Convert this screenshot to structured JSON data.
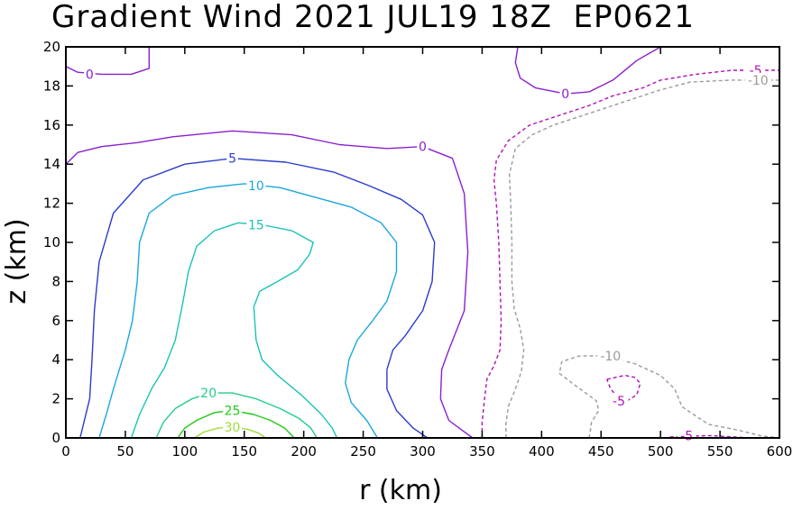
{
  "chart_data": {
    "type": "contour",
    "title": "Gradient Wind 2021 JUL19 18Z  EP0621",
    "xlabel": "r (km)",
    "ylabel": "z (km)",
    "xlim": [
      0,
      600
    ],
    "ylim": [
      0,
      20
    ],
    "xticks": [
      "0",
      "50",
      "100",
      "150",
      "200",
      "250",
      "300",
      "350",
      "400",
      "450",
      "500",
      "550",
      "600"
    ],
    "yticks": [
      "0",
      "2",
      "4",
      "6",
      "8",
      "10",
      "12",
      "14",
      "16",
      "18",
      "20"
    ],
    "grid": false,
    "negative_contours_dashed": true,
    "contours": [
      {
        "level": 0,
        "color": "#8b1fd0",
        "dashed": false,
        "points": [
          [
            0,
            14.0
          ],
          [
            10,
            14.6
          ],
          [
            30,
            14.9
          ],
          [
            60,
            15.1
          ],
          [
            90,
            15.4
          ],
          [
            140,
            15.7
          ],
          [
            190,
            15.5
          ],
          [
            230,
            15.0
          ],
          [
            270,
            14.8
          ],
          [
            300,
            14.9
          ],
          [
            325,
            14.3
          ],
          [
            335,
            12.5
          ],
          [
            338,
            9.5
          ],
          [
            335,
            6.5
          ],
          [
            322,
            4.5
          ],
          [
            316,
            3.5
          ],
          [
            315,
            2.0
          ],
          [
            322,
            0.9
          ],
          [
            333,
            0.4
          ],
          [
            342,
            0.0
          ]
        ]
      },
      {
        "level": 0,
        "color": "#8b1fd0",
        "dashed": false,
        "points": [
          [
            0,
            19.0
          ],
          [
            10,
            18.7
          ],
          [
            30,
            18.6
          ],
          [
            55,
            18.6
          ],
          [
            70,
            18.9
          ],
          [
            70,
            20.0
          ]
        ]
      },
      {
        "level": 0,
        "color": "#8b1fd0",
        "dashed": false,
        "points": [
          [
            380,
            20.0
          ],
          [
            378,
            19.2
          ],
          [
            382,
            18.4
          ],
          [
            395,
            17.9
          ],
          [
            420,
            17.6
          ],
          [
            440,
            17.7
          ],
          [
            460,
            18.3
          ],
          [
            480,
            19.3
          ],
          [
            500,
            20.0
          ]
        ]
      },
      {
        "level": 5,
        "color": "#2a3ccc",
        "dashed": false,
        "points": [
          [
            12,
            0.0
          ],
          [
            20,
            2.0
          ],
          [
            22,
            4.0
          ],
          [
            24,
            6.5
          ],
          [
            28,
            9.0
          ],
          [
            40,
            11.5
          ],
          [
            65,
            13.2
          ],
          [
            100,
            14.0
          ],
          [
            140,
            14.3
          ],
          [
            185,
            14.1
          ],
          [
            225,
            13.6
          ],
          [
            255,
            12.9
          ],
          [
            282,
            12.2
          ],
          [
            300,
            11.4
          ],
          [
            310,
            10.0
          ],
          [
            308,
            8.0
          ],
          [
            300,
            6.5
          ],
          [
            285,
            5.2
          ],
          [
            275,
            4.5
          ],
          [
            270,
            3.5
          ],
          [
            270,
            2.5
          ],
          [
            278,
            1.4
          ],
          [
            292,
            0.5
          ],
          [
            304,
            0.0
          ]
        ]
      },
      {
        "level": 10,
        "color": "#1aa7e0",
        "dashed": false,
        "points": [
          [
            28,
            0.0
          ],
          [
            34,
            1.2
          ],
          [
            40,
            2.5
          ],
          [
            50,
            4.5
          ],
          [
            56,
            6.0
          ],
          [
            60,
            8.0
          ],
          [
            62,
            10.0
          ],
          [
            70,
            11.5
          ],
          [
            90,
            12.4
          ],
          [
            120,
            12.8
          ],
          [
            150,
            13.0
          ],
          [
            180,
            12.8
          ],
          [
            210,
            12.3
          ],
          [
            240,
            11.8
          ],
          [
            265,
            11.0
          ],
          [
            278,
            10.0
          ],
          [
            278,
            8.5
          ],
          [
            270,
            7.0
          ],
          [
            258,
            6.0
          ],
          [
            245,
            5.0
          ],
          [
            238,
            4.0
          ],
          [
            235,
            2.8
          ],
          [
            240,
            1.8
          ],
          [
            253,
            0.9
          ],
          [
            262,
            0.0
          ]
        ]
      },
      {
        "level": 15,
        "color": "#1ac4b4",
        "dashed": false,
        "points": [
          [
            55,
            0.0
          ],
          [
            62,
            1.2
          ],
          [
            72,
            2.5
          ],
          [
            83,
            3.6
          ],
          [
            92,
            5.0
          ],
          [
            98,
            6.8
          ],
          [
            103,
            8.5
          ],
          [
            110,
            9.8
          ],
          [
            125,
            10.6
          ],
          [
            145,
            11.0
          ],
          [
            165,
            10.9
          ],
          [
            190,
            10.6
          ],
          [
            208,
            10.0
          ],
          [
            205,
            9.4
          ],
          [
            195,
            8.6
          ],
          [
            178,
            8.0
          ],
          [
            163,
            7.5
          ],
          [
            158,
            6.7
          ],
          [
            160,
            5.0
          ],
          [
            165,
            4.0
          ],
          [
            178,
            3.2
          ],
          [
            198,
            2.2
          ],
          [
            215,
            1.2
          ],
          [
            224,
            0.5
          ],
          [
            228,
            0.0
          ]
        ]
      },
      {
        "level": 20,
        "color": "#22cc88",
        "dashed": false,
        "points": [
          [
            76,
            0.0
          ],
          [
            82,
            0.8
          ],
          [
            92,
            1.5
          ],
          [
            106,
            2.0
          ],
          [
            122,
            2.3
          ],
          [
            140,
            2.3
          ],
          [
            160,
            2.0
          ],
          [
            180,
            1.5
          ],
          [
            196,
            1.0
          ],
          [
            206,
            0.5
          ],
          [
            211,
            0.0
          ]
        ]
      },
      {
        "level": 25,
        "color": "#22c818",
        "dashed": false,
        "points": [
          [
            94,
            0.0
          ],
          [
            100,
            0.5
          ],
          [
            110,
            0.9
          ],
          [
            125,
            1.3
          ],
          [
            140,
            1.4
          ],
          [
            158,
            1.2
          ],
          [
            172,
            0.9
          ],
          [
            184,
            0.5
          ],
          [
            192,
            0.0
          ]
        ]
      },
      {
        "level": 30,
        "color": "#a0dc3c",
        "dashed": false,
        "points": [
          [
            108,
            0.0
          ],
          [
            116,
            0.3
          ],
          [
            128,
            0.5
          ],
          [
            140,
            0.55
          ],
          [
            152,
            0.45
          ],
          [
            162,
            0.25
          ],
          [
            168,
            0.0
          ]
        ]
      },
      {
        "level": -5,
        "color": "#b010b8",
        "dashed": true,
        "points": [
          [
            350,
            0.0
          ],
          [
            350,
            0.8
          ],
          [
            352,
            2.0
          ],
          [
            354,
            3.0
          ],
          [
            360,
            3.7
          ],
          [
            365,
            4.5
          ],
          [
            366,
            6.0
          ],
          [
            365,
            8.0
          ],
          [
            364,
            10.0
          ],
          [
            362,
            12.0
          ],
          [
            360,
            13.2
          ],
          [
            362,
            14.2
          ],
          [
            372,
            15.2
          ],
          [
            390,
            16.0
          ],
          [
            415,
            16.5
          ],
          [
            440,
            17.0
          ],
          [
            460,
            17.5
          ],
          [
            485,
            17.9
          ],
          [
            500,
            18.3
          ],
          [
            530,
            18.6
          ],
          [
            560,
            18.8
          ],
          [
            600,
            18.8
          ]
        ]
      },
      {
        "level": -10,
        "color": "#9a9a9a",
        "dashed": true,
        "points": [
          [
            370,
            0.0
          ],
          [
            370,
            0.7
          ],
          [
            372,
            1.6
          ],
          [
            378,
            2.5
          ],
          [
            383,
            3.4
          ],
          [
            385,
            4.5
          ],
          [
            382,
            5.6
          ],
          [
            377,
            6.6
          ],
          [
            375,
            8.0
          ],
          [
            375,
            10.0
          ],
          [
            374,
            12.0
          ],
          [
            373,
            13.5
          ],
          [
            378,
            14.8
          ],
          [
            392,
            15.5
          ],
          [
            410,
            16.0
          ],
          [
            430,
            16.4
          ],
          [
            455,
            16.9
          ],
          [
            480,
            17.4
          ],
          [
            500,
            17.8
          ],
          [
            525,
            18.2
          ],
          [
            560,
            18.3
          ],
          [
            600,
            18.3
          ]
        ]
      },
      {
        "level": -10,
        "color": "#9a9a9a",
        "dashed": true,
        "points": [
          [
            440,
            0.0
          ],
          [
            442,
            0.8
          ],
          [
            448,
            1.4
          ],
          [
            446,
            1.9
          ],
          [
            428,
            2.7
          ],
          [
            415,
            3.3
          ],
          [
            417,
            3.9
          ],
          [
            432,
            4.2
          ],
          [
            452,
            4.2
          ],
          [
            478,
            3.8
          ],
          [
            500,
            3.2
          ],
          [
            512,
            2.5
          ],
          [
            518,
            1.6
          ],
          [
            540,
            0.7
          ],
          [
            565,
            0.4
          ],
          [
            585,
            0.1
          ],
          [
            600,
            0.0
          ]
        ]
      },
      {
        "level": -5,
        "color": "#b010b8",
        "dashed": true,
        "points": [
          [
            455,
            3.0
          ],
          [
            470,
            3.2
          ],
          [
            478,
            3.1
          ],
          [
            483,
            2.8
          ],
          [
            480,
            2.2
          ],
          [
            472,
            1.9
          ],
          [
            464,
            2.1
          ],
          [
            458,
            2.5
          ],
          [
            455,
            3.0
          ]
        ]
      },
      {
        "level": -5,
        "color": "#b010b8",
        "dashed": true,
        "points": [
          [
            508,
            0.05
          ],
          [
            520,
            0.08
          ],
          [
            540,
            0.12
          ],
          [
            560,
            0.06
          ],
          [
            575,
            0.0
          ]
        ]
      }
    ],
    "contour_labels": [
      {
        "text": "0",
        "x": 20,
        "y": 18.6,
        "color": "#8b1fd0"
      },
      {
        "text": "0",
        "x": 300,
        "y": 14.9,
        "color": "#8b1fd0"
      },
      {
        "text": "0",
        "x": 420,
        "y": 17.6,
        "color": "#8b1fd0"
      },
      {
        "text": "5",
        "x": 140,
        "y": 14.3,
        "color": "#2a3ccc"
      },
      {
        "text": "10",
        "x": 160,
        "y": 12.9,
        "color": "#1aa7e0"
      },
      {
        "text": "15",
        "x": 160,
        "y": 10.9,
        "color": "#1ac4b4"
      },
      {
        "text": "20",
        "x": 120,
        "y": 2.3,
        "color": "#22cc88"
      },
      {
        "text": "25",
        "x": 140,
        "y": 1.4,
        "color": "#22c818"
      },
      {
        "text": "30",
        "x": 140,
        "y": 0.55,
        "color": "#a0dc3c"
      },
      {
        "text": "-5",
        "x": 580,
        "y": 18.8,
        "color": "#b010b8"
      },
      {
        "text": "-10",
        "x": 582,
        "y": 18.3,
        "color": "#9a9a9a"
      },
      {
        "text": "-10",
        "x": 458,
        "y": 4.2,
        "color": "#9a9a9a"
      },
      {
        "text": "-5",
        "x": 465,
        "y": 1.9,
        "color": "#b010b8"
      },
      {
        "text": "-5",
        "x": 522,
        "y": 0.12,
        "color": "#b010b8"
      }
    ]
  }
}
